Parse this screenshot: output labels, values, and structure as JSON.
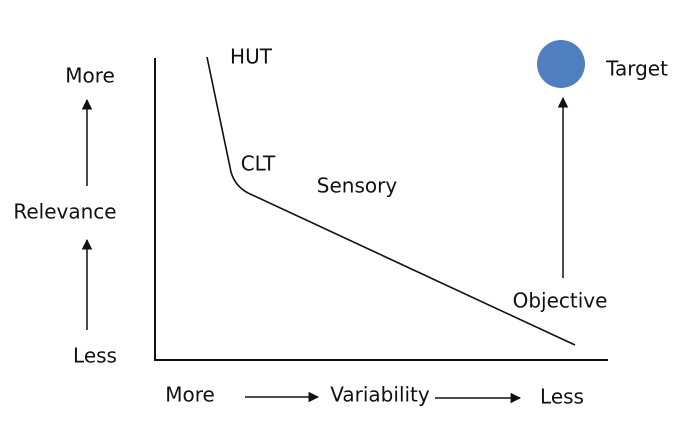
{
  "y_axis": {
    "top": "More",
    "label": "Relevance",
    "bottom": "Less"
  },
  "x_axis": {
    "left": "More",
    "label": "Variability",
    "right": "Less"
  },
  "nodes": [
    {
      "label": "HUT"
    },
    {
      "label": "CLT"
    },
    {
      "label": "Sensory"
    },
    {
      "label": "Objective"
    },
    {
      "label": "Target"
    }
  ]
}
